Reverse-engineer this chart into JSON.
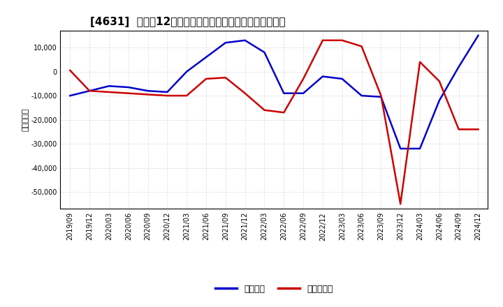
{
  "title": "[4631]  利益の12か月移動合計の対前年同期増減額の推移",
  "ylabel": "（百万円）",
  "legend_labels": [
    "経常利益",
    "当期純利益"
  ],
  "line_colors": [
    "#0000CC",
    "#CC0000"
  ],
  "ylim": [
    -57000,
    17000
  ],
  "yticks": [
    10000,
    0,
    -10000,
    -20000,
    -30000,
    -40000,
    -50000
  ],
  "x_labels": [
    "2019/09",
    "2019/12",
    "2020/03",
    "2020/06",
    "2020/09",
    "2020/12",
    "2021/03",
    "2021/06",
    "2021/09",
    "2021/12",
    "2022/03",
    "2022/06",
    "2022/09",
    "2022/12",
    "2023/03",
    "2023/06",
    "2023/09",
    "2023/12",
    "2024/03",
    "2024/06",
    "2024/09",
    "2024/12"
  ],
  "ordinary_profit": [
    -10000,
    -8000,
    -6000,
    -6500,
    -8000,
    -8500,
    0,
    6000,
    12000,
    13000,
    8000,
    -9000,
    -9000,
    -2000,
    -3000,
    -10000,
    -10500,
    -32000,
    -32000,
    -12000,
    2000,
    15000
  ],
  "net_profit": [
    500,
    -8000,
    -8500,
    -9000,
    -9500,
    -10000,
    -10000,
    -3000,
    -2500,
    -9000,
    -16000,
    -17000,
    -3000,
    13000,
    13000,
    10500,
    -10000,
    -55000,
    4000,
    -4000,
    -24000,
    -24000
  ],
  "background_color": "#FFFFFF",
  "grid_color": "#BBBBBB"
}
